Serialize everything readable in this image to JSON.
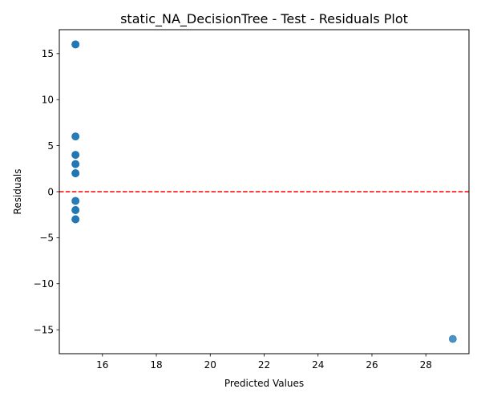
{
  "chart_data": {
    "type": "scatter",
    "title": "static_NA_DecisionTree - Test - Residuals Plot",
    "xlabel": "Predicted Values",
    "ylabel": "Residuals",
    "xlim": [
      14.4,
      29.6
    ],
    "ylim": [
      -17.6,
      17.6
    ],
    "xticks": [
      16,
      18,
      20,
      22,
      24,
      26,
      28
    ],
    "yticks": [
      15,
      10,
      5,
      0,
      -5,
      -10,
      -15
    ],
    "ytick_labels": [
      "15",
      "10",
      "5",
      "0",
      "−5",
      "−10",
      "−15"
    ],
    "grid": false,
    "point_color": "#1f77b4",
    "point_alpha": 0.8,
    "reference_line": {
      "y": 0,
      "color": "#ff0000",
      "style": "dashed"
    },
    "points": [
      {
        "x": 15,
        "y": 16
      },
      {
        "x": 15,
        "y": 16
      },
      {
        "x": 15,
        "y": 16
      },
      {
        "x": 15,
        "y": 6
      },
      {
        "x": 15,
        "y": 6
      },
      {
        "x": 15,
        "y": 4
      },
      {
        "x": 15,
        "y": 4
      },
      {
        "x": 15,
        "y": 4
      },
      {
        "x": 15,
        "y": 3
      },
      {
        "x": 15,
        "y": 3
      },
      {
        "x": 15,
        "y": 3
      },
      {
        "x": 15,
        "y": 2
      },
      {
        "x": 15,
        "y": 2
      },
      {
        "x": 15,
        "y": 2
      },
      {
        "x": 15,
        "y": 2
      },
      {
        "x": 15,
        "y": -1
      },
      {
        "x": 15,
        "y": -1
      },
      {
        "x": 15,
        "y": -2
      },
      {
        "x": 15,
        "y": -2
      },
      {
        "x": 15,
        "y": -2
      },
      {
        "x": 15,
        "y": -3
      },
      {
        "x": 15,
        "y": -3
      },
      {
        "x": 15,
        "y": -3
      },
      {
        "x": 29,
        "y": -16
      }
    ]
  }
}
